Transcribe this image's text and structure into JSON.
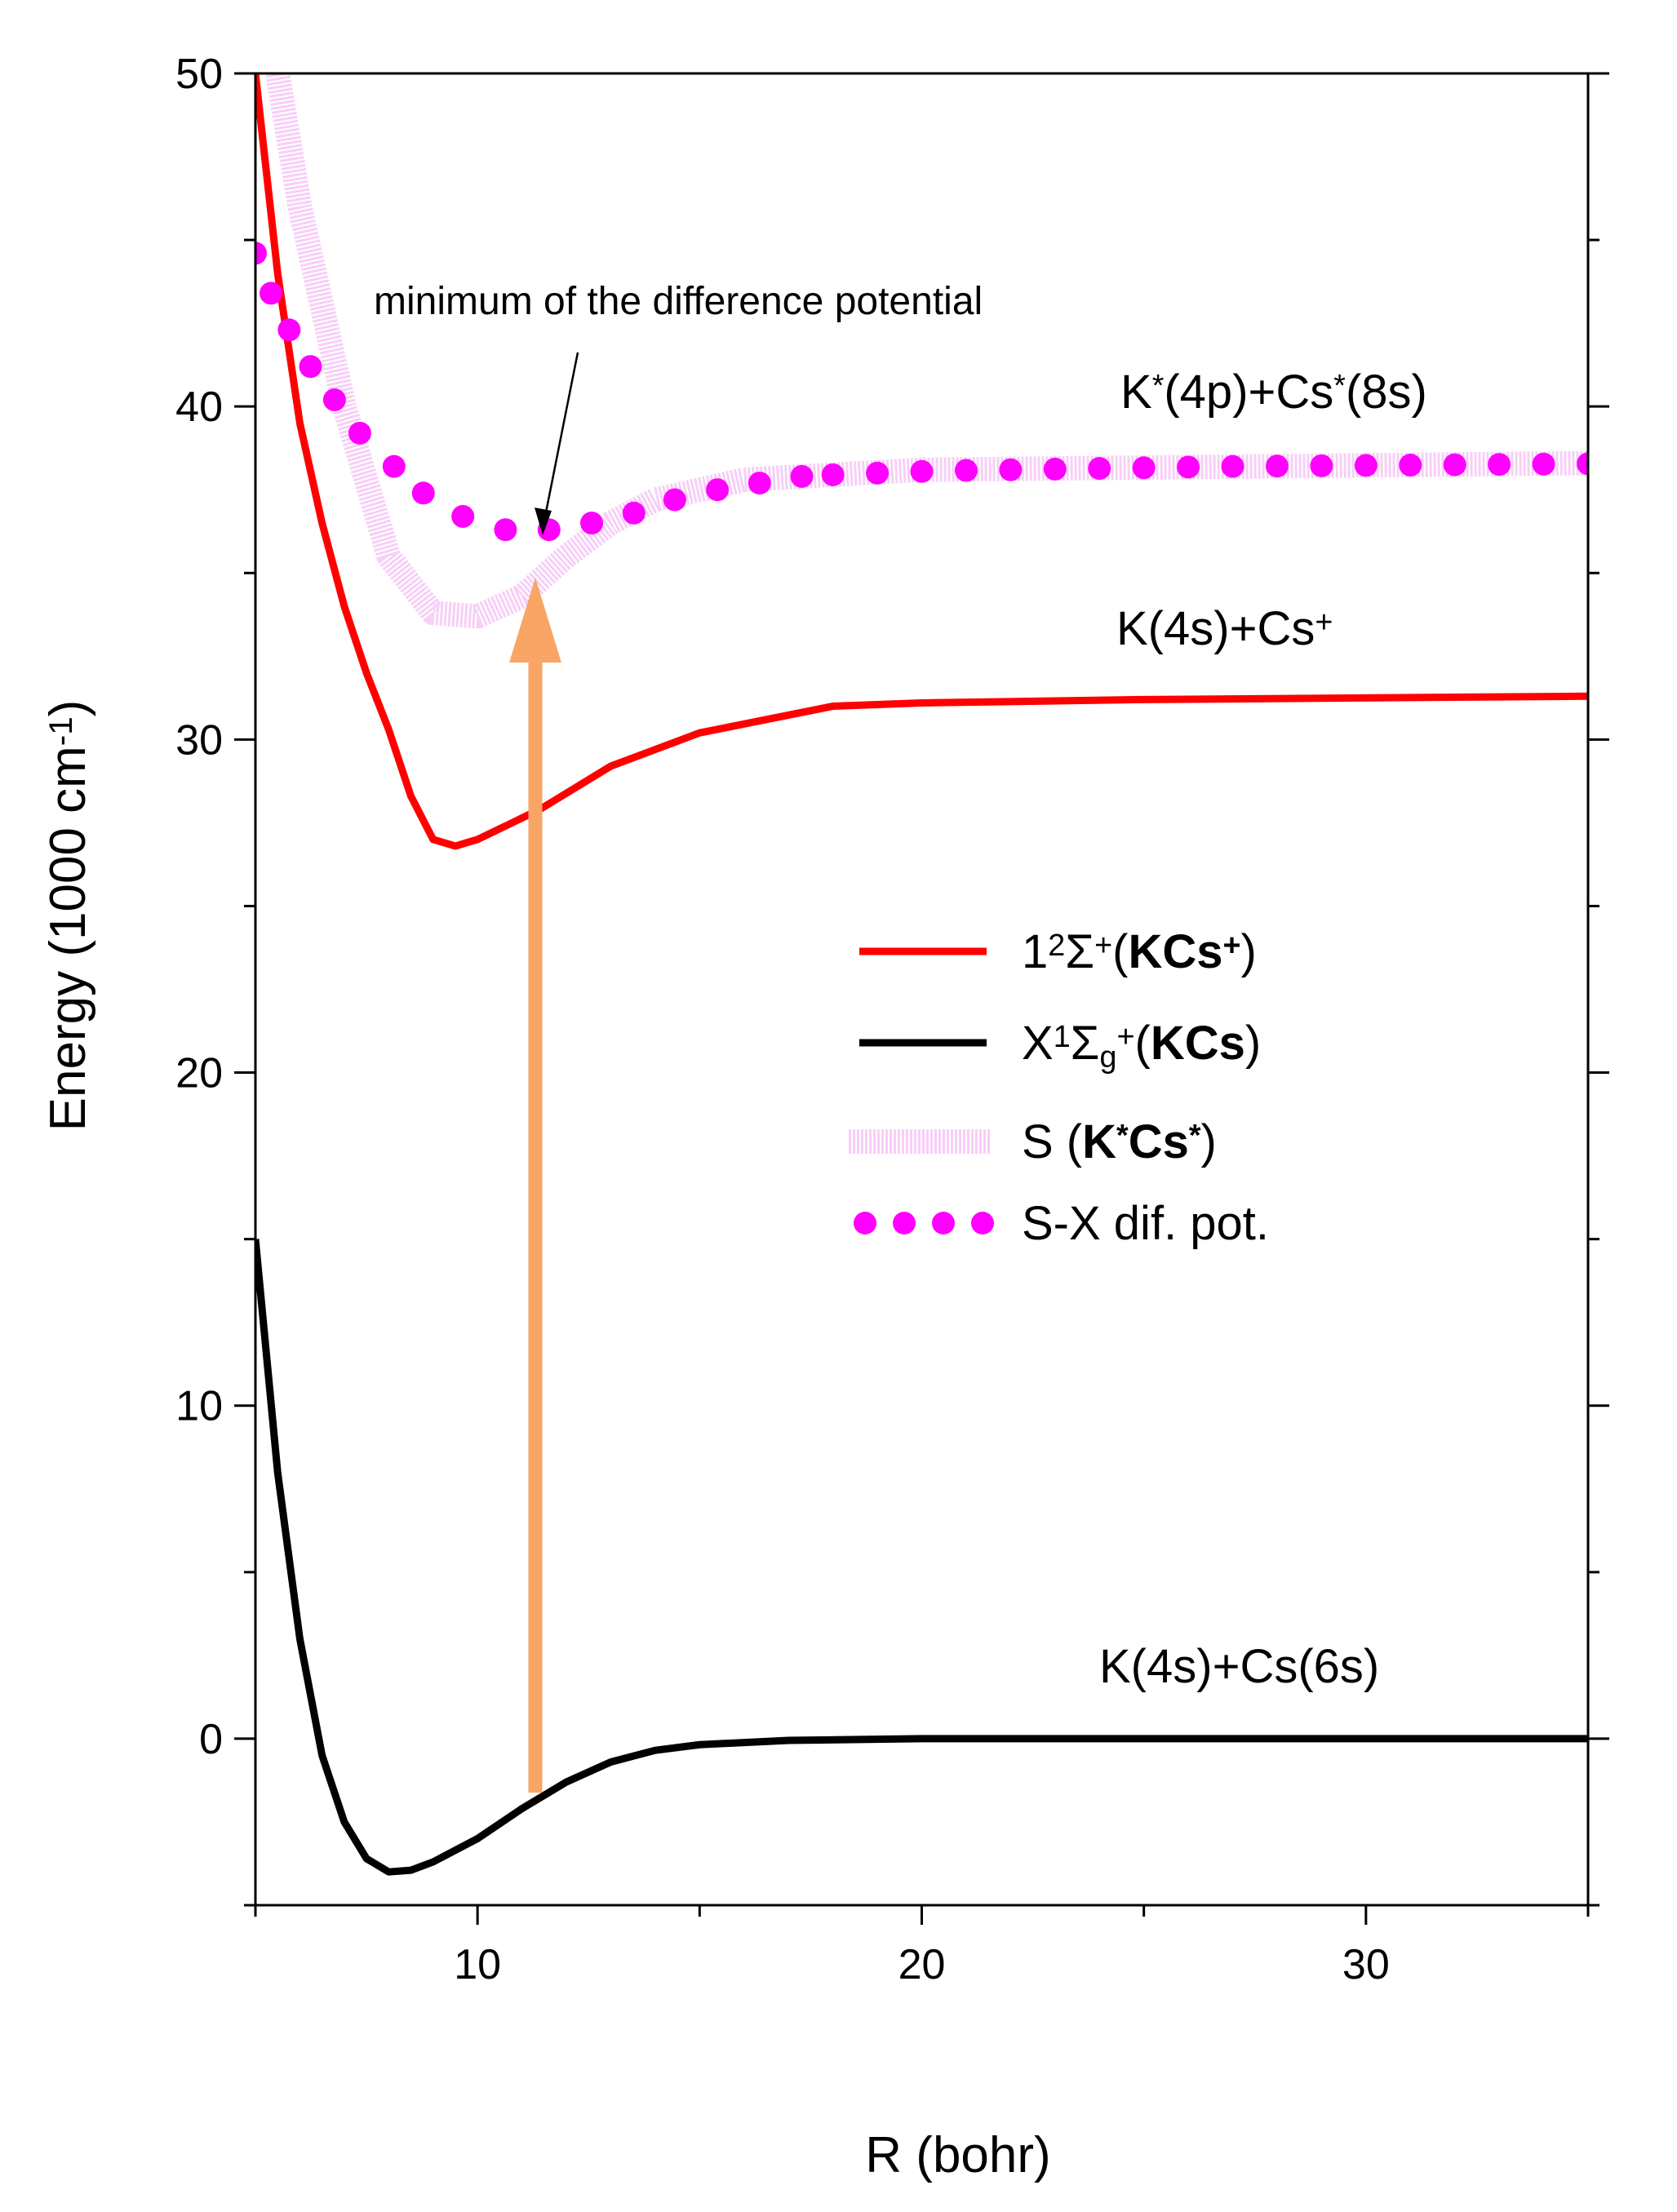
{
  "chart_data": {
    "type": "line",
    "xlabel": [
      {
        "text": "R (bohr)"
      }
    ],
    "ylabel": [
      {
        "text": "Energy (1000 cm"
      },
      {
        "text": "-1",
        "sup": true
      },
      {
        "text": ")"
      }
    ],
    "xlim": [
      5,
      35
    ],
    "ylim": [
      -5,
      50
    ],
    "xticks": [
      10,
      20,
      30
    ],
    "yticks": [
      0,
      10,
      20,
      30,
      40,
      50
    ],
    "x_minor_ticks": [
      5,
      15,
      25,
      35
    ],
    "y_minor_ticks": [
      -5,
      5,
      15,
      25,
      35,
      45
    ],
    "annotations": [
      {
        "parts": [
          {
            "text": "minimum of the difference potential"
          }
        ]
      },
      {
        "parts": [
          {
            "text": "K"
          },
          {
            "text": "*",
            "sup": true
          },
          {
            "text": "(4p)+Cs"
          },
          {
            "text": "*",
            "sup": true
          },
          {
            "text": "(8s)"
          }
        ]
      },
      {
        "parts": [
          {
            "text": "K(4s)+Cs"
          },
          {
            "text": "+",
            "sup": true
          }
        ]
      },
      {
        "parts": [
          {
            "text": "K(4s)+Cs(6s)"
          }
        ]
      }
    ],
    "series": [
      {
        "name": [
          {
            "text": "1"
          },
          {
            "text": "2",
            "sup": true
          },
          {
            "text": "Σ"
          },
          {
            "text": "+",
            "sup": true
          },
          {
            "text": "("
          },
          {
            "text": "KCs",
            "bold": true
          },
          {
            "text": "+",
            "sup": true,
            "bold": true
          },
          {
            "text": ")"
          }
        ],
        "color": "#ff0000",
        "style": "line",
        "x": [
          5,
          5.5,
          6,
          6.5,
          7,
          7.5,
          8,
          8.5,
          9,
          9.5,
          10,
          11.4,
          13,
          15,
          18,
          20,
          25,
          35
        ],
        "values": [
          50,
          44,
          39.5,
          36.5,
          34,
          32,
          30.3,
          28.3,
          27,
          26.8,
          27,
          27.9,
          29.2,
          30.2,
          31,
          31.1,
          31.2,
          31.3
        ]
      },
      {
        "name": [
          {
            "text": "X"
          },
          {
            "text": "1",
            "sup": true
          },
          {
            "text": "Σ"
          },
          {
            "text": "g",
            "sub": true
          },
          {
            "text": "+",
            "sup": true
          },
          {
            "text": "("
          },
          {
            "text": "KCs",
            "bold": true
          },
          {
            "text": ")"
          }
        ],
        "color": "#000000",
        "style": "line",
        "x": [
          5,
          5.5,
          6,
          6.5,
          7,
          7.5,
          8,
          8.5,
          9,
          10,
          11,
          12,
          13,
          14,
          15,
          17,
          20,
          25,
          35
        ],
        "values": [
          15,
          8,
          3,
          -0.5,
          -2.5,
          -3.6,
          -4,
          -3.95,
          -3.7,
          -3,
          -2.1,
          -1.3,
          -0.7,
          -0.35,
          -0.18,
          -0.05,
          0,
          0,
          0
        ]
      },
      {
        "name": [
          {
            "text": "S ("
          },
          {
            "text": "K",
            "bold": true
          },
          {
            "text": "*",
            "sup": true,
            "bold": true
          },
          {
            "text": "Cs",
            "bold": true
          },
          {
            "text": "*",
            "sup": true,
            "bold": true
          },
          {
            "text": ")"
          }
        ],
        "color": "#f0a8f0",
        "style": "band",
        "x": [
          5.5,
          6,
          7,
          8,
          9,
          10,
          11,
          12,
          13,
          14,
          16,
          20,
          35
        ],
        "values": [
          50,
          46,
          40,
          35.5,
          33.8,
          33.7,
          34.3,
          35.5,
          36.5,
          37.2,
          37.8,
          38.1,
          38.3
        ]
      },
      {
        "name": [
          {
            "text": "S-X dif. pot."
          }
        ],
        "color": "#ff00ff",
        "style": "dots",
        "x": [
          5,
          5.35,
          5.76,
          6.24,
          6.78,
          7.35,
          8.12,
          8.78,
          9.67,
          10.63,
          11.61,
          12.57,
          13.52,
          14.44,
          15.4,
          16.35,
          17.3,
          18,
          19,
          20,
          21,
          22,
          23,
          24,
          25,
          26,
          27,
          28,
          29,
          30,
          31,
          32,
          33,
          34,
          35
        ],
        "values": [
          44.6,
          43.4,
          42.3,
          41.2,
          40.2,
          39.2,
          38.2,
          37.4,
          36.7,
          36.3,
          36.3,
          36.5,
          36.8,
          37.2,
          37.5,
          37.7,
          37.9,
          37.95,
          38,
          38.05,
          38.08,
          38.1,
          38.12,
          38.14,
          38.16,
          38.18,
          38.2,
          38.21,
          38.22,
          38.23,
          38.24,
          38.25,
          38.26,
          38.27,
          38.28
        ]
      }
    ]
  }
}
